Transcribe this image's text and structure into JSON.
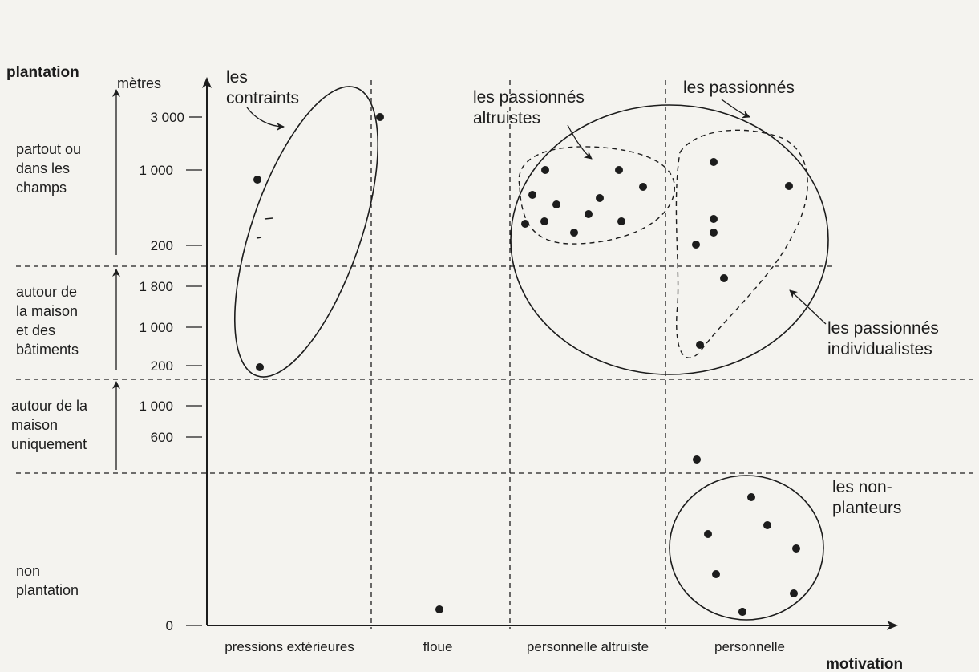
{
  "chart_data": {
    "type": "scatter",
    "title": "",
    "xlabel": "motivation",
    "ylabel": "plantation",
    "y_unit_label": "mètres",
    "categories_x": [
      "pressions extérieures",
      "floue",
      "personnelle altruiste",
      "personnelle"
    ],
    "categories_y": [
      {
        "id": "champs",
        "label_lines": [
          "partout ou",
          "dans les",
          "champs"
        ],
        "ticks": [
          "3 000",
          "1 000",
          "200"
        ]
      },
      {
        "id": "maison_batiments",
        "label_lines": [
          "autour de",
          "la maison",
          "et des",
          "bâtiments"
        ],
        "ticks": [
          "1 800",
          "1 000",
          "200"
        ]
      },
      {
        "id": "maison",
        "label_lines": [
          "autour de la",
          "maison",
          "uniquement"
        ],
        "ticks": [
          "1 000",
          "600"
        ]
      },
      {
        "id": "non",
        "label_lines": [
          "non",
          "plantation"
        ],
        "ticks": [
          "0"
        ]
      }
    ],
    "groups": [
      {
        "id": "contraints",
        "label_lines": [
          "les",
          "contraints"
        ],
        "boundary": "solid"
      },
      {
        "id": "passionnes",
        "label_lines": [
          "les passionnés"
        ],
        "boundary": "solid"
      },
      {
        "id": "altruistes",
        "label_lines": [
          "les passionnés",
          "altruistes"
        ],
        "boundary": "dashed"
      },
      {
        "id": "individualistes",
        "label_lines": [
          "les passionnés",
          "individualistes"
        ],
        "boundary": "dashed"
      },
      {
        "id": "non_planteurs",
        "label_lines": [
          "les non-",
          "planteurs"
        ],
        "boundary": "solid"
      }
    ],
    "points": [
      {
        "motivation": "pressions extérieures",
        "plantation": "partout ou dans les champs",
        "value": 1200
      },
      {
        "motivation": "pressions extérieures",
        "plantation": "autour de la maison et des bâtiments",
        "value": 200
      },
      {
        "motivation": "pressions extérieures",
        "plantation": "partout ou dans les champs",
        "value": 3000
      },
      {
        "motivation": "floue",
        "plantation": "non plantation",
        "value": 0
      },
      {
        "motivation": "personnelle altruiste",
        "plantation": "partout ou dans les champs",
        "value": 1000
      },
      {
        "motivation": "personnelle altruiste",
        "plantation": "partout ou dans les champs",
        "value": 1000
      },
      {
        "motivation": "personnelle altruiste",
        "plantation": "partout ou dans les champs",
        "value": 1000
      },
      {
        "motivation": "personnelle altruiste",
        "plantation": "partout ou dans les champs",
        "value": 800
      },
      {
        "motivation": "personnelle altruiste",
        "plantation": "partout ou dans les champs",
        "value": 700
      },
      {
        "motivation": "personnelle altruiste",
        "plantation": "partout ou dans les champs",
        "value": 700
      },
      {
        "motivation": "personnelle altruiste",
        "plantation": "partout ou dans les champs",
        "value": 700
      },
      {
        "motivation": "personnelle altruiste",
        "plantation": "partout ou dans les champs",
        "value": 600
      },
      {
        "motivation": "personnelle altruiste",
        "plantation": "partout ou dans les champs",
        "value": 500
      },
      {
        "motivation": "personnelle altruiste",
        "plantation": "partout ou dans les champs",
        "value": 500
      },
      {
        "motivation": "personnelle altruiste",
        "plantation": "partout ou dans les champs",
        "value": 500
      },
      {
        "motivation": "personnelle altruiste",
        "plantation": "partout ou dans les champs",
        "value": 400
      },
      {
        "motivation": "personnelle",
        "plantation": "partout ou dans les champs",
        "value": 1100
      },
      {
        "motivation": "personnelle",
        "plantation": "partout ou dans les champs",
        "value": 800
      },
      {
        "motivation": "personnelle",
        "plantation": "partout ou dans les champs",
        "value": 500
      },
      {
        "motivation": "personnelle",
        "plantation": "partout ou dans les champs",
        "value": 400
      },
      {
        "motivation": "personnelle",
        "plantation": "partout ou dans les champs",
        "value": 300
      },
      {
        "motivation": "personnelle",
        "plantation": "autour de la maison et des bâtiments",
        "value": 1600
      },
      {
        "motivation": "personnelle",
        "plantation": "autour de la maison et des bâtiments",
        "value": 800
      },
      {
        "motivation": "personnelle",
        "plantation": "autour de la maison uniquement",
        "value": 400
      },
      {
        "motivation": "personnelle",
        "plantation": "non plantation",
        "value": 0
      },
      {
        "motivation": "personnelle",
        "plantation": "non plantation",
        "value": 0
      },
      {
        "motivation": "personnelle",
        "plantation": "non plantation",
        "value": 0
      },
      {
        "motivation": "personnelle",
        "plantation": "non plantation",
        "value": 0
      },
      {
        "motivation": "personnelle",
        "plantation": "non plantation",
        "value": 0
      },
      {
        "motivation": "personnelle",
        "plantation": "non plantation",
        "value": 0
      },
      {
        "motivation": "personnelle",
        "plantation": "non plantation",
        "value": 0
      }
    ],
    "grid": "dashed category separators",
    "legend": "none"
  }
}
